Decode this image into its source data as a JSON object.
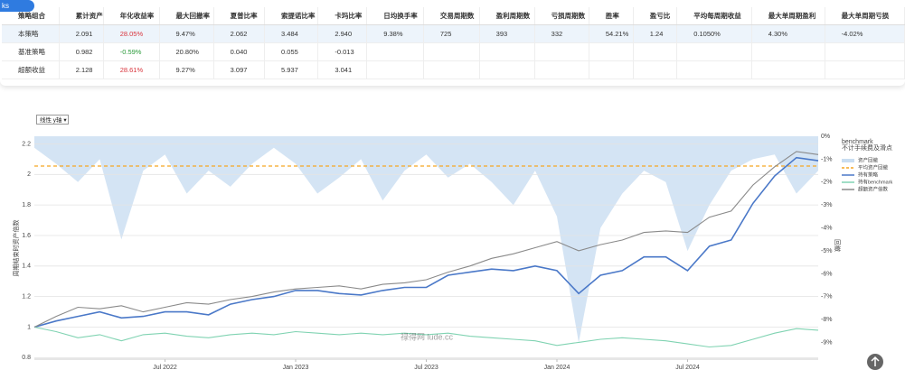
{
  "badge": "ks",
  "table": {
    "headers": [
      "策略组合",
      "累计资产",
      "年化收益率",
      "最大回撤率",
      "夏普比率",
      "索提诺比率",
      "卡玛比率",
      "日均换手率",
      "交易周期数",
      "盈利周期数",
      "亏损周期数",
      "胜率",
      "盈亏比",
      "平均每周期收益",
      "最大单周期盈利",
      "最大单周期亏损"
    ],
    "rows": [
      [
        "本策略",
        "2.091",
        "28.05%",
        "9.47%",
        "2.062",
        "3.484",
        "2.940",
        "9.38%",
        "725",
        "393",
        "332",
        "54.21%",
        "1.24",
        "0.1050%",
        "4.30%",
        "-4.02%"
      ],
      [
        "基准策略",
        "0.982",
        "-0.59%",
        "20.80%",
        "0.040",
        "0.055",
        "-0.013"
      ],
      [
        "超额收益",
        "2.128",
        "28.61%",
        "9.27%",
        "3.097",
        "5.937",
        "3.041"
      ]
    ]
  },
  "dropdown": "线性 y轴",
  "watermark": "禄得网 lude.cc",
  "chart_data": {
    "type": "line",
    "y_label": "周期结束时资产倍数",
    "y2_label": "回撤",
    "legend_title": "benchmark",
    "legend_subtitle": "不计手续费及滑点",
    "x": [
      "2022-01",
      "2022-02",
      "2022-03",
      "2022-04",
      "2022-05",
      "2022-06",
      "2022-07",
      "2022-08",
      "2022-09",
      "2022-10",
      "2022-11",
      "2022-12",
      "2023-01",
      "2023-02",
      "2023-03",
      "2023-04",
      "2023-05",
      "2023-06",
      "2023-07",
      "2023-08",
      "2023-09",
      "2023-10",
      "2023-11",
      "2023-12",
      "2024-01",
      "2024-02",
      "2024-03",
      "2024-04",
      "2024-05",
      "2024-06",
      "2024-07",
      "2024-08",
      "2024-09",
      "2024-10",
      "2024-11",
      "2024-12",
      "2025-01"
    ],
    "xlim": [
      "2022-01",
      "2025-01"
    ],
    "xticks": [
      {
        "value": "2022-07",
        "label": "Jul 2022"
      },
      {
        "value": "2023-01",
        "label": "Jan 2023"
      },
      {
        "value": "2023-07",
        "label": "Jul 2023"
      },
      {
        "value": "2024-01",
        "label": "Jan 2024"
      },
      {
        "value": "2024-07",
        "label": "Jul 2024"
      }
    ],
    "ylim": [
      0.79,
      2.25
    ],
    "yticks": [
      0.8,
      1,
      1.2,
      1.4,
      1.6,
      1.8,
      2,
      2.2
    ],
    "y2lim": [
      -9.72,
      0
    ],
    "y2ticks": [
      {
        "value": 0,
        "label": "0%"
      },
      {
        "value": -1,
        "label": "-1%"
      },
      {
        "value": -2,
        "label": "-2%"
      },
      {
        "value": -3,
        "label": "-3%"
      },
      {
        "value": -4,
        "label": "-4%"
      },
      {
        "value": -5,
        "label": "-5%"
      },
      {
        "value": -6,
        "label": "-6%"
      },
      {
        "value": -7,
        "label": "-7%"
      },
      {
        "value": -8,
        "label": "-8%"
      },
      {
        "value": -9,
        "label": "-9%"
      }
    ],
    "grid": true,
    "series": [
      {
        "name": "资产回撤",
        "color": "#c9ddf1",
        "axis": "y2",
        "kind": "area",
        "values": [
          -0.5,
          -1.2,
          -2,
          -1,
          -4.5,
          -1.5,
          -0.8,
          -2.5,
          -1.5,
          -2.2,
          -1.2,
          -0.5,
          -1.2,
          -2.5,
          -1.8,
          -1,
          -2.8,
          -1.5,
          -0.8,
          -1.8,
          -1.2,
          -2,
          -3,
          -1.5,
          -3.5,
          -9,
          -4,
          -2.5,
          -1.5,
          -2,
          -5,
          -3,
          -1.5,
          -1,
          -0.8,
          -2.5,
          -1.5
        ]
      },
      {
        "name": "平均资产回撤",
        "color": "#f5a623",
        "axis": "y2",
        "kind": "hline",
        "value": -1.3
      },
      {
        "name": "持有策略",
        "color": "#4a78c8",
        "kind": "line",
        "values": [
          1,
          1.04,
          1.07,
          1.1,
          1.06,
          1.07,
          1.1,
          1.1,
          1.08,
          1.15,
          1.18,
          1.2,
          1.24,
          1.24,
          1.22,
          1.21,
          1.24,
          1.26,
          1.26,
          1.34,
          1.36,
          1.38,
          1.37,
          1.4,
          1.37,
          1.22,
          1.34,
          1.37,
          1.46,
          1.46,
          1.37,
          1.53,
          1.57,
          1.81,
          1.99,
          2.11,
          2.09
        ]
      },
      {
        "name": "持有benchmark",
        "color": "#80d3b2",
        "kind": "line",
        "values": [
          1,
          0.97,
          0.93,
          0.95,
          0.91,
          0.95,
          0.96,
          0.94,
          0.93,
          0.95,
          0.96,
          0.95,
          0.97,
          0.96,
          0.95,
          0.96,
          0.95,
          0.96,
          0.95,
          0.96,
          0.94,
          0.93,
          0.92,
          0.91,
          0.88,
          0.9,
          0.92,
          0.93,
          0.92,
          0.91,
          0.89,
          0.87,
          0.88,
          0.92,
          0.96,
          0.99,
          0.98
        ]
      },
      {
        "name": "超额资产倍数",
        "color": "#8a8a8a",
        "kind": "line",
        "values": [
          1,
          1.07,
          1.13,
          1.12,
          1.14,
          1.1,
          1.13,
          1.16,
          1.15,
          1.18,
          1.2,
          1.23,
          1.25,
          1.26,
          1.27,
          1.25,
          1.28,
          1.29,
          1.31,
          1.36,
          1.4,
          1.45,
          1.48,
          1.52,
          1.56,
          1.5,
          1.54,
          1.57,
          1.62,
          1.63,
          1.62,
          1.72,
          1.76,
          1.93,
          2.05,
          2.15,
          2.13
        ]
      }
    ]
  }
}
